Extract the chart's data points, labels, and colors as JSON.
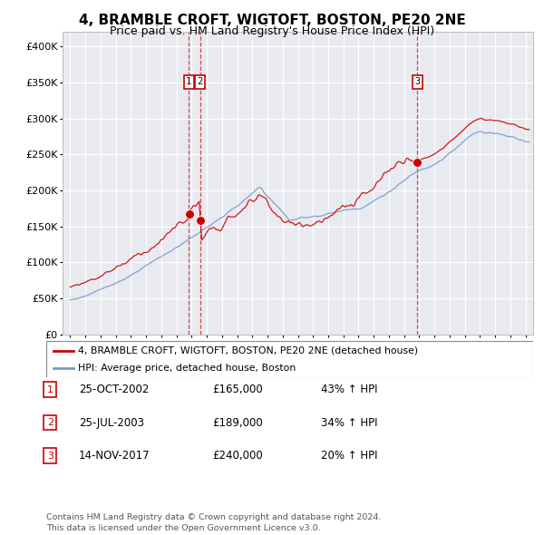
{
  "title": "4, BRAMBLE CROFT, WIGTOFT, BOSTON, PE20 2NE",
  "subtitle": "Price paid vs. HM Land Registry's House Price Index (HPI)",
  "title_fontsize": 11,
  "subtitle_fontsize": 9,
  "background_color": "#ffffff",
  "plot_bg_color": "#e8eaf0",
  "grid_color": "#ffffff",
  "red_color": "#cc0000",
  "blue_color": "#7799cc",
  "legend_label_red": "4, BRAMBLE CROFT, WIGTOFT, BOSTON, PE20 2NE (detached house)",
  "legend_label_blue": "HPI: Average price, detached house, Boston",
  "vline_color": "#cc0000",
  "transactions": [
    {
      "label": "1",
      "date_num": 2002.82,
      "price": 165000,
      "text": "25-OCT-2002",
      "amount": "£165,000",
      "pct": "43% ↑ HPI"
    },
    {
      "label": "2",
      "date_num": 2003.56,
      "price": 189000,
      "text": "25-JUL-2003",
      "amount": "£189,000",
      "pct": "34% ↑ HPI"
    },
    {
      "label": "3",
      "date_num": 2017.87,
      "price": 240000,
      "text": "14-NOV-2017",
      "amount": "£240,000",
      "pct": "20% ↑ HPI"
    }
  ],
  "footer": "Contains HM Land Registry data © Crown copyright and database right 2024.\nThis data is licensed under the Open Government Licence v3.0.",
  "ylim": [
    0,
    420000
  ],
  "xlim": [
    1994.5,
    2025.5
  ]
}
